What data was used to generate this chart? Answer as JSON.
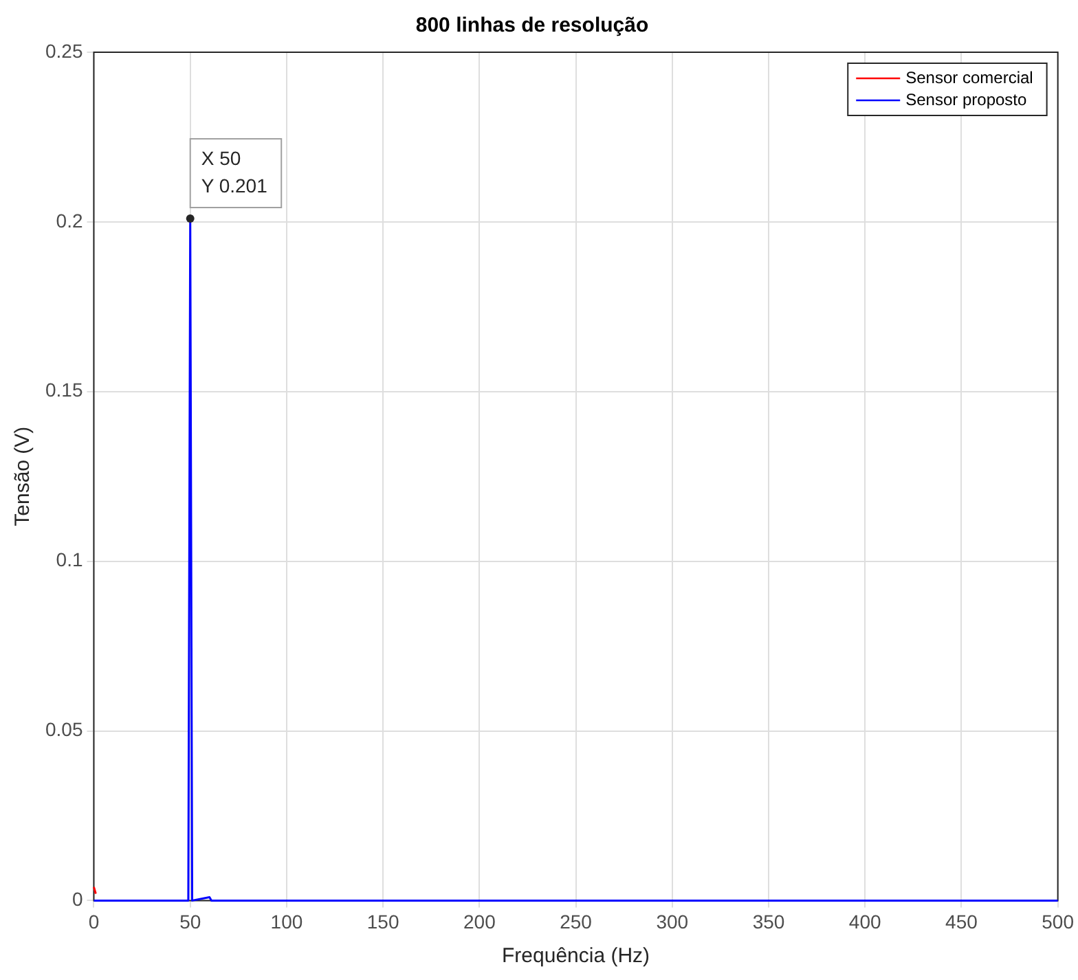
{
  "chart_data": {
    "type": "line",
    "title": "800 linhas de resolução",
    "xlabel": "Frequência (Hz)",
    "ylabel": "Tensão (V)",
    "series": [
      {
        "name": "Sensor comercial",
        "color": "#ff0000",
        "x": [
          0,
          1
        ],
        "values": [
          0.004,
          0.002
        ]
      },
      {
        "name": "Sensor proposto",
        "color": "#0000ff",
        "x": [
          0,
          49,
          50,
          51,
          60,
          61,
          500
        ],
        "values": [
          0,
          0,
          0.201,
          0,
          0.001,
          0,
          0
        ]
      }
    ],
    "annotations": [
      {
        "text": "X 50\nY 0.201",
        "x": 50,
        "y": 0.201
      }
    ],
    "xlim": [
      0,
      500
    ],
    "xticks": [
      0,
      50,
      100,
      150,
      200,
      250,
      300,
      350,
      400,
      450,
      500
    ],
    "ylim": [
      0,
      0.25
    ],
    "yticks": [
      0,
      0.05,
      0.1,
      0.15,
      0.2,
      0.25
    ],
    "grid": true,
    "legend": "top right",
    "marker": "none",
    "line_style": "solid"
  }
}
